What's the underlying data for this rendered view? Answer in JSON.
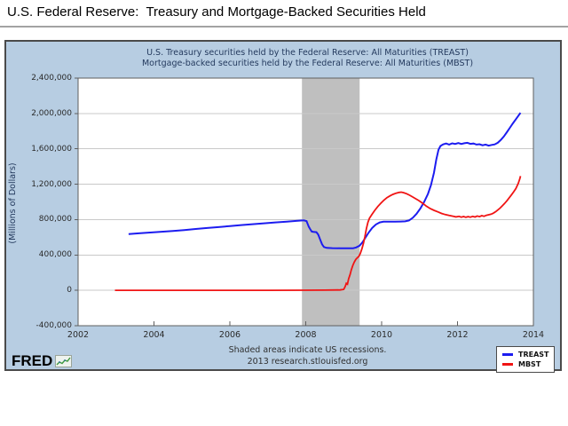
{
  "page": {
    "title": "U.S. Federal Reserve:  Treasury and Mortgage-Backed Securities Held"
  },
  "chart_data": {
    "type": "line",
    "title_lines": [
      "U.S. Treasury securities held by the Federal Reserve: All Maturities (TREAST)",
      "Mortgage-backed securities held by the Federal Reserve: All Maturities (MBST)"
    ],
    "xlabel": "",
    "ylabel": "(Millions of Dollars)",
    "x_range": [
      2002,
      2014
    ],
    "y_range": [
      -400000,
      2400000
    ],
    "grid": "horizontal",
    "legend_position": "bottom-right",
    "x_ticks": [
      {
        "value": 2002,
        "label": "2002"
      },
      {
        "value": 2004,
        "label": "2004"
      },
      {
        "value": 2006,
        "label": "2006"
      },
      {
        "value": 2008,
        "label": "2008"
      },
      {
        "value": 2010,
        "label": "2010"
      },
      {
        "value": 2012,
        "label": "2012"
      },
      {
        "value": 2014,
        "label": "2014"
      }
    ],
    "y_ticks": [
      {
        "value": 2400000,
        "label": "2,400,000"
      },
      {
        "value": 2000000,
        "label": "2,000,000"
      },
      {
        "value": 1600000,
        "label": "1,600,000"
      },
      {
        "value": 1200000,
        "label": "1,200,000"
      },
      {
        "value": 800000,
        "label": "800,000"
      },
      {
        "value": 400000,
        "label": "400,000"
      },
      {
        "value": 0,
        "label": "0"
      },
      {
        "value": -400000,
        "label": "-400,000"
      }
    ],
    "recession_bands": [
      {
        "start": 2007.9,
        "end": 2009.42,
        "color": "#bfbfbf"
      }
    ],
    "series": [
      {
        "name": "TREAST",
        "color": "#1c1cf0",
        "points": [
          [
            2003.33,
            637000
          ],
          [
            2003.6,
            645000
          ],
          [
            2003.9,
            654000
          ],
          [
            2004.2,
            663000
          ],
          [
            2004.5,
            672000
          ],
          [
            2004.8,
            682000
          ],
          [
            2005.1,
            694000
          ],
          [
            2005.4,
            705000
          ],
          [
            2005.7,
            715000
          ],
          [
            2006.0,
            727000
          ],
          [
            2006.3,
            738000
          ],
          [
            2006.6,
            748000
          ],
          [
            2006.9,
            758000
          ],
          [
            2007.2,
            768000
          ],
          [
            2007.5,
            777000
          ],
          [
            2007.75,
            785000
          ],
          [
            2007.95,
            791000
          ],
          [
            2008.02,
            783000
          ],
          [
            2008.05,
            752000
          ],
          [
            2008.08,
            720000
          ],
          [
            2008.12,
            690000
          ],
          [
            2008.16,
            665000
          ],
          [
            2008.2,
            662000
          ],
          [
            2008.28,
            658000
          ],
          [
            2008.33,
            630000
          ],
          [
            2008.38,
            575000
          ],
          [
            2008.43,
            520000
          ],
          [
            2008.48,
            490000
          ],
          [
            2008.55,
            480000
          ],
          [
            2008.7,
            477000
          ],
          [
            2008.9,
            476000
          ],
          [
            2009.1,
            475000
          ],
          [
            2009.25,
            476000
          ],
          [
            2009.33,
            485000
          ],
          [
            2009.42,
            505000
          ],
          [
            2009.5,
            545000
          ],
          [
            2009.58,
            600000
          ],
          [
            2009.66,
            655000
          ],
          [
            2009.75,
            705000
          ],
          [
            2009.85,
            745000
          ],
          [
            2009.95,
            768000
          ],
          [
            2010.05,
            776000
          ],
          [
            2010.2,
            777000
          ],
          [
            2010.35,
            776000
          ],
          [
            2010.5,
            778000
          ],
          [
            2010.62,
            780000
          ],
          [
            2010.72,
            790000
          ],
          [
            2010.82,
            820000
          ],
          [
            2010.92,
            865000
          ],
          [
            2011.02,
            925000
          ],
          [
            2011.12,
            1000000
          ],
          [
            2011.22,
            1090000
          ],
          [
            2011.3,
            1190000
          ],
          [
            2011.38,
            1330000
          ],
          [
            2011.44,
            1480000
          ],
          [
            2011.5,
            1590000
          ],
          [
            2011.55,
            1632000
          ],
          [
            2011.62,
            1650000
          ],
          [
            2011.7,
            1660000
          ],
          [
            2011.78,
            1648000
          ],
          [
            2011.86,
            1662000
          ],
          [
            2011.94,
            1655000
          ],
          [
            2012.02,
            1665000
          ],
          [
            2012.1,
            1655000
          ],
          [
            2012.18,
            1663000
          ],
          [
            2012.26,
            1668000
          ],
          [
            2012.34,
            1656000
          ],
          [
            2012.42,
            1660000
          ],
          [
            2012.5,
            1648000
          ],
          [
            2012.58,
            1652000
          ],
          [
            2012.66,
            1640000
          ],
          [
            2012.74,
            1648000
          ],
          [
            2012.82,
            1636000
          ],
          [
            2012.9,
            1644000
          ],
          [
            2012.98,
            1650000
          ],
          [
            2013.06,
            1668000
          ],
          [
            2013.14,
            1700000
          ],
          [
            2013.22,
            1740000
          ],
          [
            2013.3,
            1788000
          ],
          [
            2013.38,
            1838000
          ],
          [
            2013.46,
            1888000
          ],
          [
            2013.54,
            1935000
          ],
          [
            2013.62,
            1985000
          ],
          [
            2013.66,
            2008000
          ]
        ]
      },
      {
        "name": "MBST",
        "color": "#f01414",
        "points": [
          [
            2002.97,
            500
          ],
          [
            2004.0,
            500
          ],
          [
            2005.0,
            500
          ],
          [
            2006.0,
            500
          ],
          [
            2007.0,
            500
          ],
          [
            2008.0,
            1000
          ],
          [
            2008.5,
            2000
          ],
          [
            2008.9,
            4000
          ],
          [
            2009.0,
            10000
          ],
          [
            2009.04,
            45000
          ],
          [
            2009.07,
            80000
          ],
          [
            2009.1,
            70000
          ],
          [
            2009.13,
            130000
          ],
          [
            2009.17,
            180000
          ],
          [
            2009.2,
            230000
          ],
          [
            2009.24,
            280000
          ],
          [
            2009.28,
            320000
          ],
          [
            2009.32,
            350000
          ],
          [
            2009.36,
            368000
          ],
          [
            2009.4,
            385000
          ],
          [
            2009.44,
            420000
          ],
          [
            2009.48,
            470000
          ],
          [
            2009.52,
            530000
          ],
          [
            2009.56,
            610000
          ],
          [
            2009.6,
            700000
          ],
          [
            2009.64,
            770000
          ],
          [
            2009.68,
            815000
          ],
          [
            2009.74,
            855000
          ],
          [
            2009.82,
            905000
          ],
          [
            2009.9,
            948000
          ],
          [
            2009.98,
            985000
          ],
          [
            2010.06,
            1020000
          ],
          [
            2010.14,
            1048000
          ],
          [
            2010.22,
            1068000
          ],
          [
            2010.3,
            1085000
          ],
          [
            2010.38,
            1098000
          ],
          [
            2010.46,
            1107000
          ],
          [
            2010.52,
            1110000
          ],
          [
            2010.58,
            1104000
          ],
          [
            2010.66,
            1092000
          ],
          [
            2010.74,
            1075000
          ],
          [
            2010.82,
            1055000
          ],
          [
            2010.9,
            1035000
          ],
          [
            2010.98,
            1015000
          ],
          [
            2011.08,
            985000
          ],
          [
            2011.18,
            952000
          ],
          [
            2011.28,
            925000
          ],
          [
            2011.38,
            905000
          ],
          [
            2011.48,
            888000
          ],
          [
            2011.58,
            870000
          ],
          [
            2011.68,
            856000
          ],
          [
            2011.78,
            846000
          ],
          [
            2011.88,
            838000
          ],
          [
            2011.96,
            830000
          ],
          [
            2012.04,
            836000
          ],
          [
            2012.1,
            827000
          ],
          [
            2012.16,
            834000
          ],
          [
            2012.22,
            826000
          ],
          [
            2012.28,
            833000
          ],
          [
            2012.34,
            827000
          ],
          [
            2012.4,
            836000
          ],
          [
            2012.46,
            829000
          ],
          [
            2012.52,
            840000
          ],
          [
            2012.58,
            833000
          ],
          [
            2012.64,
            844000
          ],
          [
            2012.7,
            837000
          ],
          [
            2012.76,
            848000
          ],
          [
            2012.82,
            854000
          ],
          [
            2012.88,
            861000
          ],
          [
            2012.94,
            872000
          ],
          [
            2013.0,
            888000
          ],
          [
            2013.06,
            908000
          ],
          [
            2013.12,
            930000
          ],
          [
            2013.18,
            955000
          ],
          [
            2013.24,
            982000
          ],
          [
            2013.3,
            1012000
          ],
          [
            2013.36,
            1044000
          ],
          [
            2013.42,
            1078000
          ],
          [
            2013.48,
            1114000
          ],
          [
            2013.54,
            1152000
          ],
          [
            2013.6,
            1208000
          ],
          [
            2013.64,
            1258000
          ],
          [
            2013.66,
            1292000
          ]
        ]
      }
    ]
  },
  "footer": {
    "line1": "Shaded areas indicate US recessions.",
    "line2": "2013 research.stlouisfed.org"
  },
  "legend": {
    "items": [
      {
        "label": "TREAST",
        "color": "#1c1cf0"
      },
      {
        "label": "MBST",
        "color": "#f01414"
      }
    ]
  },
  "logo": {
    "text": "FRED"
  },
  "colors": {
    "panel_bg": "#b7cde2",
    "plot_bg": "#ffffff",
    "gridline": "#c9c9c9",
    "plot_border": "#5f5f5f",
    "recession": "#bfbfbf"
  }
}
